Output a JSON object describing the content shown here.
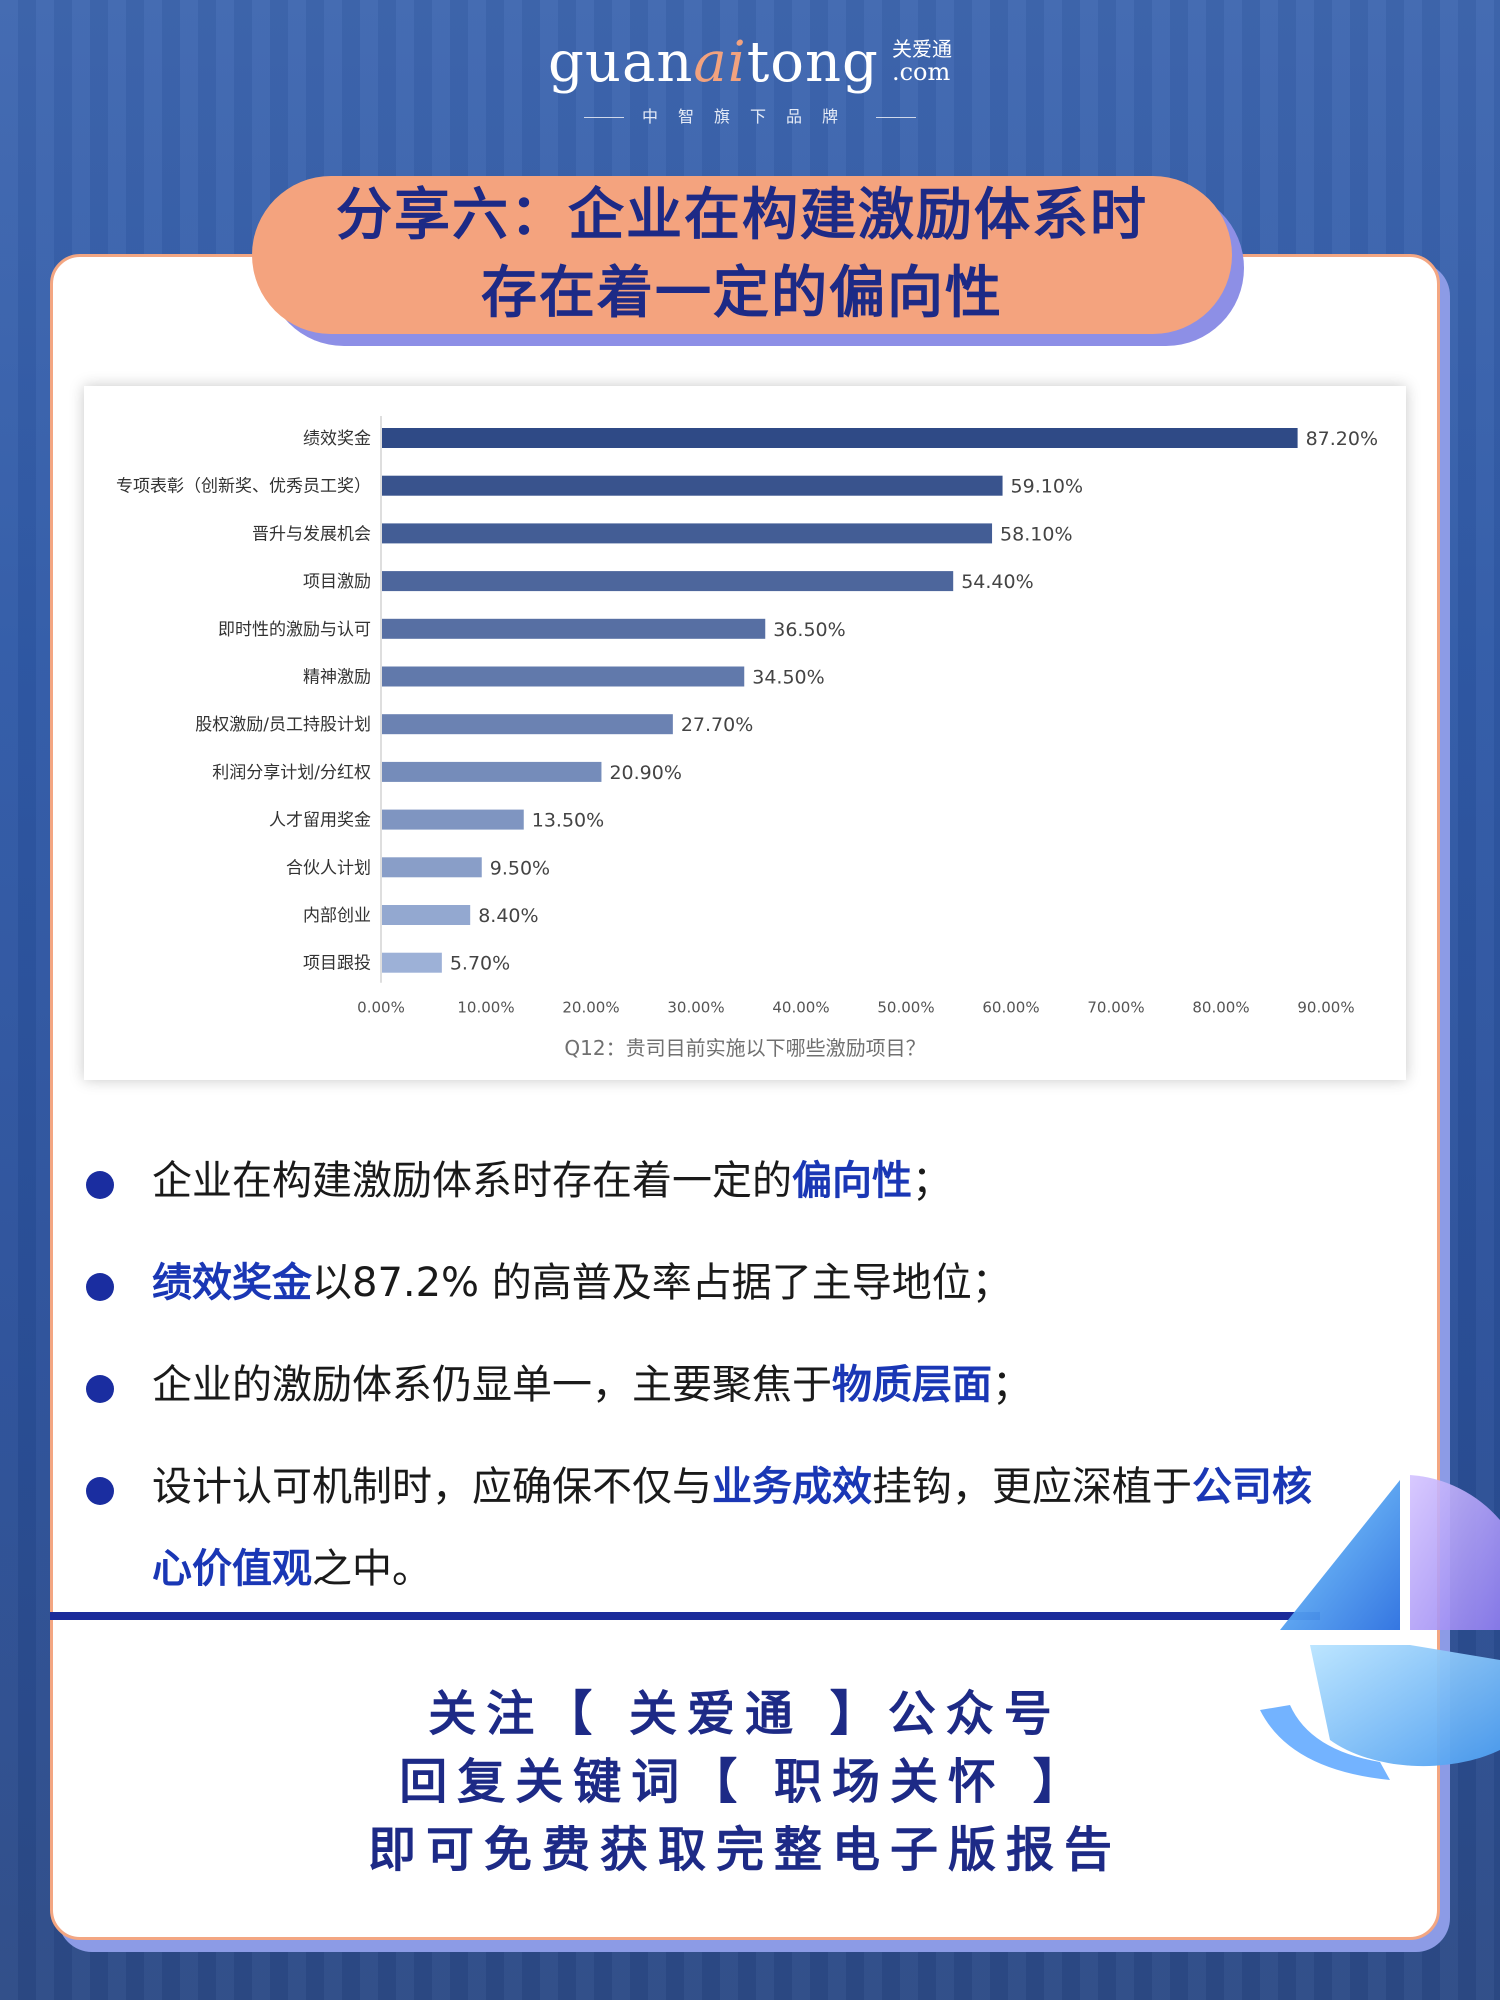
{
  "brand": {
    "word_prefix": "guan",
    "word_accent": "ai",
    "word_suffix": "tong",
    "cn_name": "关爱通",
    "domain": ".com",
    "tagline": "中智旗下品牌"
  },
  "title": {
    "line1": "分享六：企业在构建激励体系时",
    "line2": "存在着一定的偏向性"
  },
  "colors": {
    "bar_dark": "#2f4a86",
    "bar_light": "#9db1d7",
    "accent": "#1a37b5",
    "pill": "#f4a37e"
  },
  "chart_data": {
    "type": "bar",
    "orientation": "horizontal",
    "title": "",
    "caption": "Q12：贵司目前实施以下哪些激励项目？",
    "categories": [
      "绩效奖金",
      "专项表彰（创新奖、优秀员工奖）",
      "晋升与发展机会",
      "项目激励",
      "即时性的激励与认可",
      "精神激励",
      "股权激励/员工持股计划",
      "利润分享计划/分红权",
      "人才留用奖金",
      "合伙人计划",
      "内部创业",
      "项目跟投"
    ],
    "values": [
      87.2,
      59.1,
      58.1,
      54.4,
      36.5,
      34.5,
      27.7,
      20.9,
      13.5,
      9.5,
      8.4,
      5.7
    ],
    "value_labels": [
      "87.20%",
      "59.10%",
      "58.10%",
      "54.40%",
      "36.50%",
      "34.50%",
      "27.70%",
      "20.90%",
      "13.50%",
      "9.50%",
      "8.40%",
      "5.70%"
    ],
    "x_ticks": [
      "0.00%",
      "10.00%",
      "20.00%",
      "30.00%",
      "40.00%",
      "50.00%",
      "60.00%",
      "70.00%",
      "80.00%",
      "90.00%"
    ],
    "xlim": [
      0,
      95
    ],
    "grid": false,
    "legend": "none"
  },
  "bullets": [
    {
      "parts": [
        {
          "text": "企业在构建激励体系时存在着一定的",
          "hl": false
        },
        {
          "text": "偏向性",
          "hl": true
        },
        {
          "text": "；",
          "hl": false
        }
      ]
    },
    {
      "parts": [
        {
          "text": "绩效奖金",
          "hl": true
        },
        {
          "text": "以87.2% 的高普及率占据了主导地位；",
          "hl": false
        }
      ]
    },
    {
      "parts": [
        {
          "text": "企业的激励体系仍显单一，主要聚焦于",
          "hl": false
        },
        {
          "text": "物质层面",
          "hl": true
        },
        {
          "text": "；",
          "hl": false
        }
      ]
    },
    {
      "parts": [
        {
          "text": "设计认可机制时，应确保不仅与",
          "hl": false
        },
        {
          "text": "业务成效",
          "hl": true
        },
        {
          "text": "挂钩，更应深植于",
          "hl": false
        },
        {
          "text": "公司核心价值观",
          "hl": true
        },
        {
          "text": "之中。",
          "hl": false
        }
      ]
    }
  ],
  "cta": {
    "line1": "关注【 关爱通 】公众号",
    "line2": "回复关键词【 职场关怀 】",
    "line3": "即可免费获取完整电子版报告"
  }
}
